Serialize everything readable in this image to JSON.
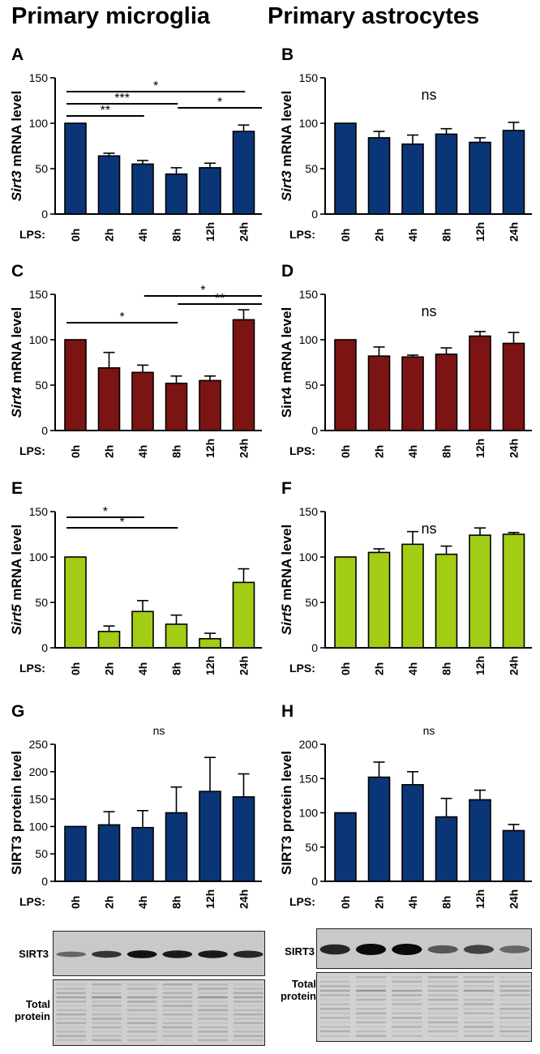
{
  "headers": {
    "left": "Primary microglia",
    "right": "Primary astrocytes"
  },
  "lps_label": "LPS:",
  "colors": {
    "navy": "#0a3678",
    "darkred": "#7d1414",
    "lime": "#a3cc14"
  },
  "blots": {
    "left_band_label": "SIRT3",
    "left_total_label": [
      "Total",
      "protein"
    ],
    "right_band_label": "SIRT3",
    "right_total_label": [
      "Total",
      "protein"
    ],
    "left_band_intensity": [
      0.35,
      0.7,
      0.95,
      0.9,
      0.9,
      0.8
    ],
    "right_band_intensity": [
      0.8,
      1.0,
      1.0,
      0.45,
      0.6,
      0.35
    ]
  },
  "chart_data": [
    {
      "panel": "A",
      "type": "bar",
      "ylabel": "Sirt3 mRNA level",
      "ylabel_italic": "Sirt3",
      "categories": [
        "0h",
        "2h",
        "4h",
        "8h",
        "12h",
        "24h"
      ],
      "values": [
        100,
        64,
        55,
        44,
        51,
        91
      ],
      "errors": [
        0,
        3,
        4,
        7,
        5,
        7
      ],
      "ylim": [
        0,
        150
      ],
      "yticks": [
        0,
        50,
        100,
        150
      ],
      "color": "#0a3678",
      "ns": false,
      "significance": [
        {
          "from": 0,
          "to": 5.5,
          "label": "*"
        },
        {
          "from": 0,
          "to": 3.5,
          "label": "***"
        },
        {
          "from": 0,
          "to": 2.5,
          "label": "**"
        },
        {
          "from": 3.5,
          "to": 6,
          "label": "*"
        }
      ]
    },
    {
      "panel": "B",
      "type": "bar",
      "ylabel": "Sirt3 mRNA level",
      "ylabel_italic": "Sirt3",
      "categories": [
        "0h",
        "2h",
        "4h",
        "8h",
        "12h",
        "24h"
      ],
      "values": [
        100,
        84,
        77,
        88,
        79,
        92
      ],
      "errors": [
        0,
        7,
        10,
        6,
        5,
        9
      ],
      "ylim": [
        0,
        150
      ],
      "yticks": [
        0,
        50,
        100,
        150
      ],
      "color": "#0a3678",
      "ns": true,
      "ns_label": "ns",
      "significance": []
    },
    {
      "panel": "C",
      "type": "bar",
      "ylabel": "Sirt4 mRNA level",
      "ylabel_italic": "Sirt4",
      "categories": [
        "0h",
        "2h",
        "4h",
        "8h",
        "12h",
        "24h"
      ],
      "values": [
        100,
        69,
        64,
        52,
        55,
        122
      ],
      "errors": [
        0,
        17,
        8,
        8,
        5,
        11
      ],
      "ylim": [
        0,
        150
      ],
      "yticks": [
        0,
        50,
        100,
        150
      ],
      "color": "#7d1414",
      "ns": false,
      "significance": [
        {
          "from": 2.5,
          "to": 6,
          "label": "*"
        },
        {
          "from": 3.5,
          "to": 6,
          "label": "**"
        },
        {
          "from": 0,
          "to": 3.5,
          "label": "*"
        }
      ]
    },
    {
      "panel": "D",
      "type": "bar",
      "ylabel": "Sirt4 mRNA level",
      "ylabel_italic": "",
      "categories": [
        "0h",
        "2h",
        "4h",
        "8h",
        "12h",
        "24h"
      ],
      "values": [
        100,
        82,
        81,
        84,
        104,
        96
      ],
      "errors": [
        0,
        10,
        2,
        7,
        5,
        12
      ],
      "ylim": [
        0,
        150
      ],
      "yticks": [
        0,
        50,
        100,
        150
      ],
      "color": "#7d1414",
      "ns": true,
      "ns_label": "ns",
      "significance": []
    },
    {
      "panel": "E",
      "type": "bar",
      "ylabel": "Sirt5 mRNA level",
      "ylabel_italic": "Sirt5",
      "categories": [
        "0h",
        "2h",
        "4h",
        "8h",
        "12h",
        "24h"
      ],
      "values": [
        100,
        18,
        40,
        26,
        10,
        72
      ],
      "errors": [
        0,
        6,
        12,
        10,
        6,
        15
      ],
      "ylim": [
        0,
        150
      ],
      "yticks": [
        0,
        50,
        100,
        150
      ],
      "color": "#a3cc14",
      "ns": false,
      "significance": [
        {
          "from": 0,
          "to": 2.5,
          "label": "*"
        },
        {
          "from": 0,
          "to": 3.5,
          "label": "*"
        }
      ]
    },
    {
      "panel": "F",
      "type": "bar",
      "ylabel": "Sirt5 mRNA level",
      "ylabel_italic": "Sirt5",
      "categories": [
        "0h",
        "2h",
        "4h",
        "8h",
        "12h",
        "24h"
      ],
      "values": [
        100,
        105,
        114,
        103,
        124,
        125
      ],
      "errors": [
        0,
        4,
        14,
        9,
        8,
        2
      ],
      "ylim": [
        0,
        150
      ],
      "yticks": [
        0,
        50,
        100,
        150
      ],
      "color": "#a3cc14",
      "ns": true,
      "ns_label": "ns",
      "significance": []
    },
    {
      "panel": "G",
      "type": "bar",
      "ylabel": "SIRT3 protein level",
      "ylabel_italic": "",
      "categories": [
        "0h",
        "2h",
        "4h",
        "8h",
        "12h",
        "24h"
      ],
      "values": [
        100,
        103,
        98,
        125,
        164,
        154
      ],
      "errors": [
        0,
        24,
        31,
        47,
        62,
        42
      ],
      "ylim": [
        0,
        250
      ],
      "yticks": [
        0,
        50,
        100,
        150,
        200,
        250
      ],
      "color": "#0a3678",
      "ns": true,
      "ns_label": "ns",
      "significance": []
    },
    {
      "panel": "H",
      "type": "bar",
      "ylabel": "SIRT3 protein level",
      "ylabel_italic": "",
      "categories": [
        "0h",
        "2h",
        "4h",
        "8h",
        "12h",
        "24h"
      ],
      "values": [
        100,
        152,
        141,
        94,
        119,
        74
      ],
      "errors": [
        0,
        22,
        19,
        27,
        14,
        9
      ],
      "ylim": [
        0,
        200
      ],
      "yticks": [
        0,
        50,
        100,
        150,
        200
      ],
      "color": "#0a3678",
      "ns": true,
      "ns_label": "ns",
      "significance": []
    }
  ]
}
